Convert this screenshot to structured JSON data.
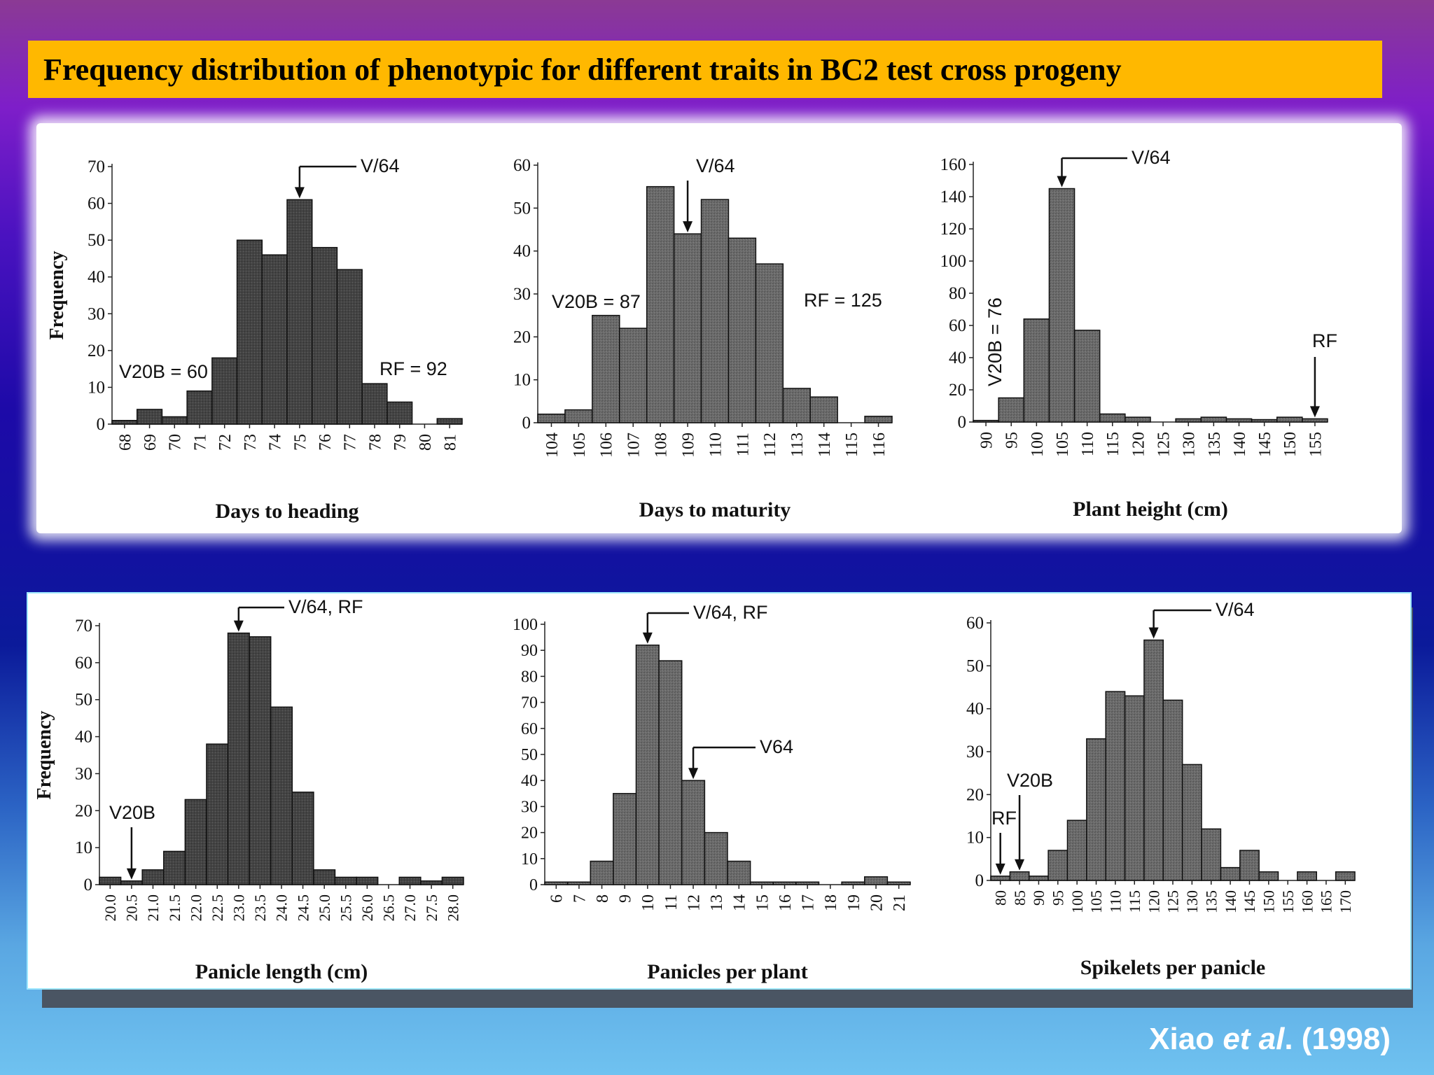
{
  "slide": {
    "title": "Frequency distribution of phenotypic for  different traits  in BC2 test cross progeny",
    "citation_author": "Xiao ",
    "citation_etal": "et al",
    "citation_year": ". (1998)"
  },
  "chart_data": [
    {
      "type": "bar",
      "xlabel": "Days to heading",
      "ylabel": "Frequency",
      "ylim": [
        0,
        70
      ],
      "yticks": [
        "0",
        "10",
        "20",
        "30",
        "40",
        "50",
        "60",
        "70"
      ],
      "categories": [
        "68",
        "69",
        "70",
        "71",
        "72",
        "73",
        "74",
        "75",
        "76",
        "77",
        "78",
        "79",
        "80",
        "81"
      ],
      "values": [
        1,
        4,
        2,
        9,
        18,
        50,
        46,
        61,
        48,
        42,
        11,
        6,
        0,
        1.5
      ],
      "annotations": [
        {
          "label": "V/64",
          "at_category": "75",
          "style": "elbow"
        },
        {
          "label": "V20B = 60",
          "style": "text"
        },
        {
          "label": "RF = 92",
          "style": "text"
        }
      ]
    },
    {
      "type": "bar",
      "xlabel": "Days to maturity",
      "ylabel": "",
      "ylim": [
        0,
        60
      ],
      "yticks": [
        "0",
        "10",
        "20",
        "30",
        "40",
        "50",
        "60"
      ],
      "categories": [
        "104",
        "105",
        "106",
        "107",
        "108",
        "109",
        "110",
        "111",
        "112",
        "113",
        "114",
        "115",
        "116"
      ],
      "values": [
        2,
        3,
        25,
        22,
        55,
        44,
        52,
        43,
        37,
        8,
        6,
        0,
        1.5
      ],
      "annotations": [
        {
          "label": "V/64",
          "at_category": "109",
          "style": "down"
        },
        {
          "label": "V20B = 87",
          "style": "text"
        },
        {
          "label": "RF = 125",
          "style": "text"
        }
      ]
    },
    {
      "type": "bar",
      "xlabel": "Plant height (cm)",
      "ylabel": "",
      "ylim": [
        0,
        160
      ],
      "yticks": [
        "0",
        "20",
        "40",
        "60",
        "80",
        "100",
        "120",
        "140",
        "160"
      ],
      "categories": [
        "90",
        "95",
        "100",
        "105",
        "110",
        "115",
        "120",
        "125",
        "130",
        "135",
        "140",
        "145",
        "150",
        "155"
      ],
      "values": [
        1,
        15,
        64,
        145,
        57,
        5,
        3,
        0,
        2,
        3,
        2,
        1.5,
        3,
        2
      ],
      "annotations": [
        {
          "label": "V/64",
          "at_category": "105",
          "style": "elbow"
        },
        {
          "label": "V20B = 76",
          "style": "vertical-text"
        },
        {
          "label": "RF",
          "at_category": "155",
          "style": "down"
        }
      ]
    },
    {
      "type": "bar",
      "xlabel": "Panicle length (cm)",
      "ylabel": "Frequency",
      "ylim": [
        0,
        70
      ],
      "yticks": [
        "0",
        "10",
        "20",
        "30",
        "40",
        "50",
        "60",
        "70"
      ],
      "categories": [
        "20.0",
        "20.5",
        "21.0",
        "21.5",
        "22.0",
        "22.5",
        "23.0",
        "23.5",
        "24.0",
        "24.5",
        "25.0",
        "25.5",
        "26.0",
        "26.5",
        "27.0",
        "27.5",
        "28.0"
      ],
      "values": [
        2,
        1,
        4,
        9,
        23,
        38,
        68,
        67,
        48,
        25,
        4,
        2,
        2,
        0,
        2,
        1,
        2
      ],
      "annotations": [
        {
          "label": "V/64, RF",
          "at_category": "23.0",
          "style": "elbow"
        },
        {
          "label": "V20B",
          "at_category": "20.5",
          "style": "down"
        }
      ]
    },
    {
      "type": "bar",
      "xlabel": "Panicles per plant",
      "ylabel": "",
      "ylim": [
        0,
        100
      ],
      "yticks": [
        "0",
        "10",
        "20",
        "30",
        "40",
        "50",
        "60",
        "70",
        "80",
        "90",
        "100"
      ],
      "categories": [
        "6",
        "7",
        "8",
        "9",
        "10",
        "11",
        "12",
        "13",
        "14",
        "15",
        "16",
        "17",
        "18",
        "19",
        "20",
        "21"
      ],
      "values": [
        1,
        1,
        9,
        35,
        92,
        86,
        40,
        20,
        9,
        1,
        1,
        1,
        0,
        1,
        3,
        1
      ],
      "annotations": [
        {
          "label": "V/64, RF",
          "at_category": "10",
          "style": "elbow"
        },
        {
          "label": "V64",
          "at_category": "12",
          "style": "elbow"
        }
      ]
    },
    {
      "type": "bar",
      "xlabel": "Spikelets per panicle",
      "ylabel": "",
      "ylim": [
        0,
        60
      ],
      "yticks": [
        "0",
        "10",
        "20",
        "30",
        "40",
        "50",
        "60"
      ],
      "categories": [
        "80",
        "85",
        "90",
        "95",
        "100",
        "105",
        "110",
        "115",
        "120",
        "125",
        "130",
        "135",
        "140",
        "145",
        "150",
        "155",
        "160",
        "165",
        "170"
      ],
      "values": [
        1,
        2,
        1,
        7,
        14,
        33,
        44,
        43,
        56,
        42,
        27,
        12,
        3,
        7,
        2,
        0,
        2,
        0,
        2
      ],
      "annotations": [
        {
          "label": "V/64",
          "at_category": "120",
          "style": "elbow"
        },
        {
          "label": "V20B",
          "at_category": "85",
          "style": "down"
        },
        {
          "label": "RF",
          "at_category": "80",
          "style": "down"
        }
      ]
    }
  ]
}
